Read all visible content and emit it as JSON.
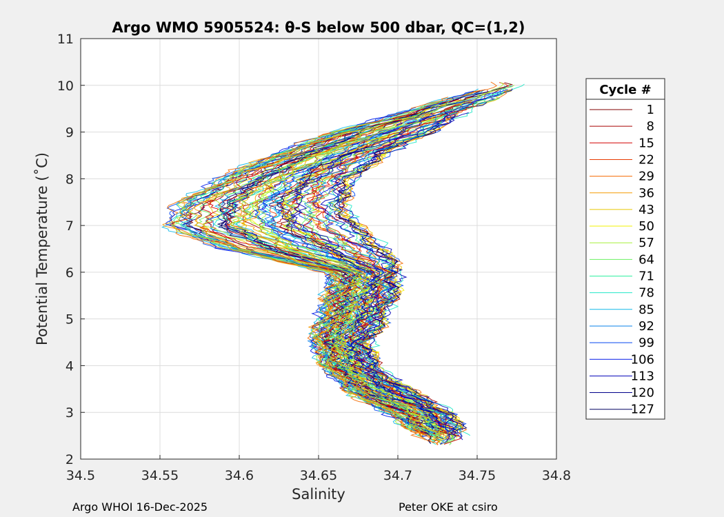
{
  "chart_data": {
    "type": "line",
    "title": "Argo WMO 5905524: θ-S below 500 dbar,  QC=(1,2)",
    "xlabel": "Salinity",
    "ylabel": "Potential Temperature (˚C)",
    "xlim": [
      34.5,
      34.8
    ],
    "ylim": [
      2,
      11
    ],
    "xticks": [
      "34.5",
      "34.55",
      "34.6",
      "34.65",
      "34.7",
      "34.75",
      "34.8"
    ],
    "yticks": [
      "2",
      "3",
      "4",
      "5",
      "6",
      "7",
      "8",
      "9",
      "10",
      "11"
    ],
    "grid": true,
    "legend_title": "Cycle #",
    "legend_position": "outside-right",
    "colormap": "jet",
    "series": [
      {
        "name": "1",
        "color": "#800000"
      },
      {
        "name": "8",
        "color": "#a80000"
      },
      {
        "name": "15",
        "color": "#d40000"
      },
      {
        "name": "22",
        "color": "#e83a00"
      },
      {
        "name": "29",
        "color": "#f46a00"
      },
      {
        "name": "36",
        "color": "#f59a00"
      },
      {
        "name": "43",
        "color": "#e8c800"
      },
      {
        "name": "50",
        "color": "#f2f200"
      },
      {
        "name": "57",
        "color": "#a6f03a"
      },
      {
        "name": "64",
        "color": "#6af060"
      },
      {
        "name": "71",
        "color": "#2ef0a0"
      },
      {
        "name": "78",
        "color": "#20e8c8"
      },
      {
        "name": "85",
        "color": "#10b8e8"
      },
      {
        "name": "92",
        "color": "#0a80e8"
      },
      {
        "name": "99",
        "color": "#0448f0"
      },
      {
        "name": "106",
        "color": "#0018e8"
      },
      {
        "name": "113",
        "color": "#0000b8"
      },
      {
        "name": "120",
        "color": "#00008a"
      },
      {
        "name": "127",
        "color": "#000060"
      }
    ],
    "envelope": {
      "temperature": [
        2.3,
        2.5,
        3.0,
        3.5,
        4.0,
        4.5,
        5.0,
        5.5,
        6.0,
        6.5,
        7.0,
        7.5,
        8.0,
        8.5,
        9.0,
        9.5,
        10.0
      ],
      "salinity_low": [
        34.722,
        34.715,
        34.693,
        34.667,
        34.654,
        34.647,
        34.651,
        34.656,
        34.658,
        34.59,
        34.553,
        34.563,
        34.588,
        34.62,
        34.66,
        34.712,
        34.76
      ],
      "salinity_high": [
        34.73,
        34.74,
        34.733,
        34.705,
        34.685,
        34.682,
        34.69,
        34.697,
        34.7,
        34.692,
        34.674,
        34.665,
        34.672,
        34.69,
        34.72,
        34.745,
        34.778
      ]
    }
  },
  "footer": {
    "left": "Argo WHOI 16-Dec-2025",
    "right": "Peter OKE at csiro"
  }
}
